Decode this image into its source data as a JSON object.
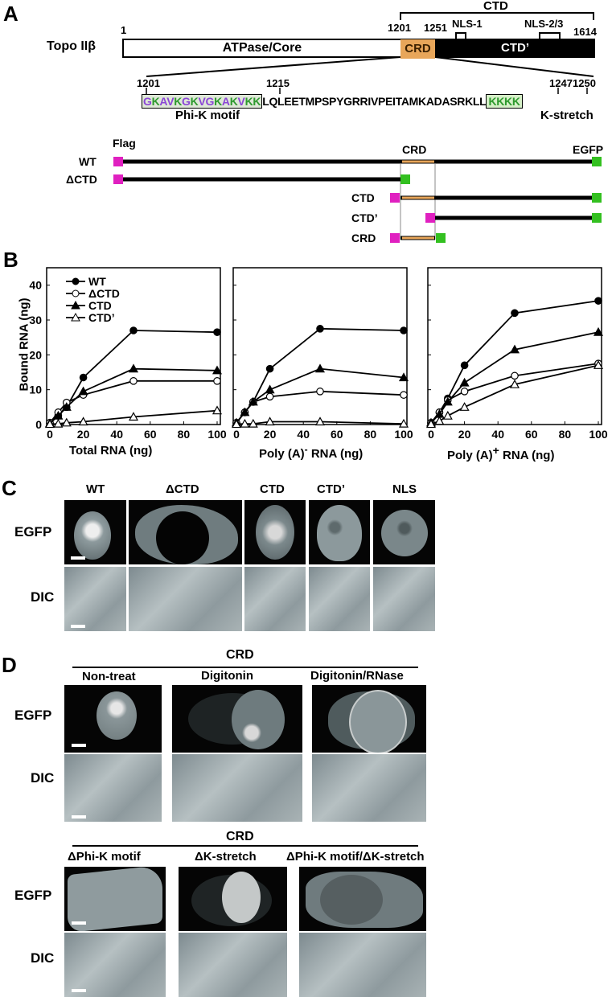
{
  "panel_labels": {
    "a": "A",
    "b": "B",
    "c": "C",
    "d": "D"
  },
  "panel_a": {
    "protein_name": "Topo IIβ",
    "domain_bar": {
      "start_label": "1",
      "end_label": "1614",
      "atpase_label": "ATPase/Core",
      "crd_label": "CRD",
      "ctd_prime_label": "CTD’",
      "crd_start": "1201",
      "crd_end": "1251",
      "ctd_label": "CTD",
      "nls1_label": "NLS-1",
      "nls23_label": "NLS-2/3"
    },
    "sequence": {
      "pos_1201": "1201",
      "pos_1215": "1215",
      "pos_1247": "1247",
      "pos_1250": "1250",
      "phik_motif": "GKAVKGKVGKAKVKK",
      "middle": "LQLEETMPSPYGRRIVPEITAMKADASRKLL",
      "kstretch": "KKKK",
      "phik_label": "Phi-K motif",
      "kstretch_label": "K-stretch"
    },
    "constructs": {
      "flag_label": "Flag",
      "crd_label": "CRD",
      "egfp_label": "EGFP",
      "rows": [
        "WT",
        "ΔCTD",
        "CTD",
        "CTD’",
        "CRD"
      ]
    },
    "colors": {
      "crd": "#e8a65a",
      "flag": "#e020c0",
      "egfp": "#33c020",
      "phi_purple": "#8b46d6",
      "k_green": "#2e9a2e"
    }
  },
  "chart_data": [
    {
      "type": "line",
      "title": "",
      "xlabel": "Total RNA (ng)",
      "ylabel": "Bound RNA (ng)",
      "xlim": [
        0,
        100
      ],
      "ylim": [
        0,
        45
      ],
      "xticks": [
        0,
        20,
        40,
        60,
        80,
        100
      ],
      "yticks": [
        0,
        10,
        20,
        30,
        40
      ],
      "legend": [
        "WT",
        "ΔCTD",
        "CTD",
        "CTD’"
      ],
      "legend_position": "upper left",
      "x": [
        0,
        5,
        10,
        20,
        50,
        100
      ],
      "series": [
        {
          "name": "WT",
          "marker": "filled-circle",
          "values": [
            0.5,
            2.5,
            5,
            13.5,
            27,
            26.5
          ]
        },
        {
          "name": "ΔCTD",
          "marker": "open-circle",
          "values": [
            0.5,
            3.5,
            6.3,
            8.5,
            12.5,
            12.5
          ]
        },
        {
          "name": "CTD",
          "marker": "filled-triangle",
          "values": [
            0.3,
            2.5,
            5,
            9.5,
            16,
            15.5
          ]
        },
        {
          "name": "CTD’",
          "marker": "open-triangle",
          "values": [
            0.1,
            0.2,
            0.5,
            0.8,
            2.2,
            4
          ]
        }
      ]
    },
    {
      "type": "line",
      "xlabel": "Poly (A)⁻ RNA (ng)",
      "ylabel": "",
      "xlim": [
        0,
        100
      ],
      "ylim": [
        0,
        45
      ],
      "xticks": [
        0,
        20,
        40,
        60,
        80,
        100
      ],
      "x": [
        0,
        5,
        10,
        20,
        50,
        100
      ],
      "series": [
        {
          "name": "WT",
          "marker": "filled-circle",
          "values": [
            0.5,
            3.5,
            6.5,
            16,
            27.5,
            27
          ]
        },
        {
          "name": "ΔCTD",
          "marker": "open-circle",
          "values": [
            0.5,
            3.5,
            6.5,
            8,
            9.5,
            8.5
          ]
        },
        {
          "name": "CTD",
          "marker": "filled-triangle",
          "values": [
            0.5,
            3.5,
            6.5,
            10,
            16,
            13.5
          ]
        },
        {
          "name": "CTD’",
          "marker": "open-triangle",
          "values": [
            0.1,
            0.2,
            0.2,
            0.8,
            0.8,
            0.2
          ]
        }
      ]
    },
    {
      "type": "line",
      "xlabel": "Poly (A)⁺ RNA (ng)",
      "ylabel": "",
      "xlim": [
        0,
        100
      ],
      "ylim": [
        0,
        45
      ],
      "xticks": [
        0,
        20,
        40,
        60,
        80,
        100
      ],
      "x": [
        0,
        5,
        10,
        20,
        50,
        100
      ],
      "series": [
        {
          "name": "WT",
          "marker": "filled-circle",
          "values": [
            0.5,
            3.5,
            7.5,
            17,
            32,
            35.5
          ]
        },
        {
          "name": "ΔCTD",
          "marker": "open-circle",
          "values": [
            0.5,
            3.5,
            7,
            9.5,
            14,
            17.5
          ]
        },
        {
          "name": "CTD",
          "marker": "filled-triangle",
          "values": [
            0.5,
            3,
            6.5,
            12,
            21.5,
            26.5
          ]
        },
        {
          "name": "CTD’",
          "marker": "open-triangle",
          "values": [
            0.1,
            1,
            2.5,
            5,
            11.5,
            17
          ]
        }
      ]
    }
  ],
  "panel_b": {
    "ylabel": "Bound RNA (ng)",
    "xlabels": [
      "Total RNA (ng)",
      "Poly (A)",
      "Poly (A)"
    ],
    "xlabel_sup": [
      "",
      "-",
      "+"
    ],
    "xlabel_suffix": [
      "",
      " RNA (ng)",
      " RNA (ng)"
    ],
    "yticks": [
      "0",
      "10",
      "20",
      "30",
      "40"
    ],
    "xticks": [
      "0",
      "20",
      "40",
      "60",
      "80",
      "100"
    ],
    "legend": [
      "WT",
      "ΔCTD",
      "CTD",
      "CTD’"
    ]
  },
  "panel_c": {
    "columns": [
      "WT",
      "ΔCTD",
      "CTD",
      "CTD’",
      "NLS"
    ],
    "rows": [
      "EGFP",
      "DIC"
    ]
  },
  "panel_d": {
    "group_label_1": "CRD",
    "columns_1": [
      "Non-treat",
      "Digitonin",
      "Digitonin/RNase"
    ],
    "group_label_2": "CRD",
    "columns_2": [
      "ΔPhi-K motif",
      "ΔK-stretch",
      "ΔPhi-K motif/ΔK-stretch"
    ],
    "rows": [
      "EGFP",
      "DIC"
    ]
  }
}
